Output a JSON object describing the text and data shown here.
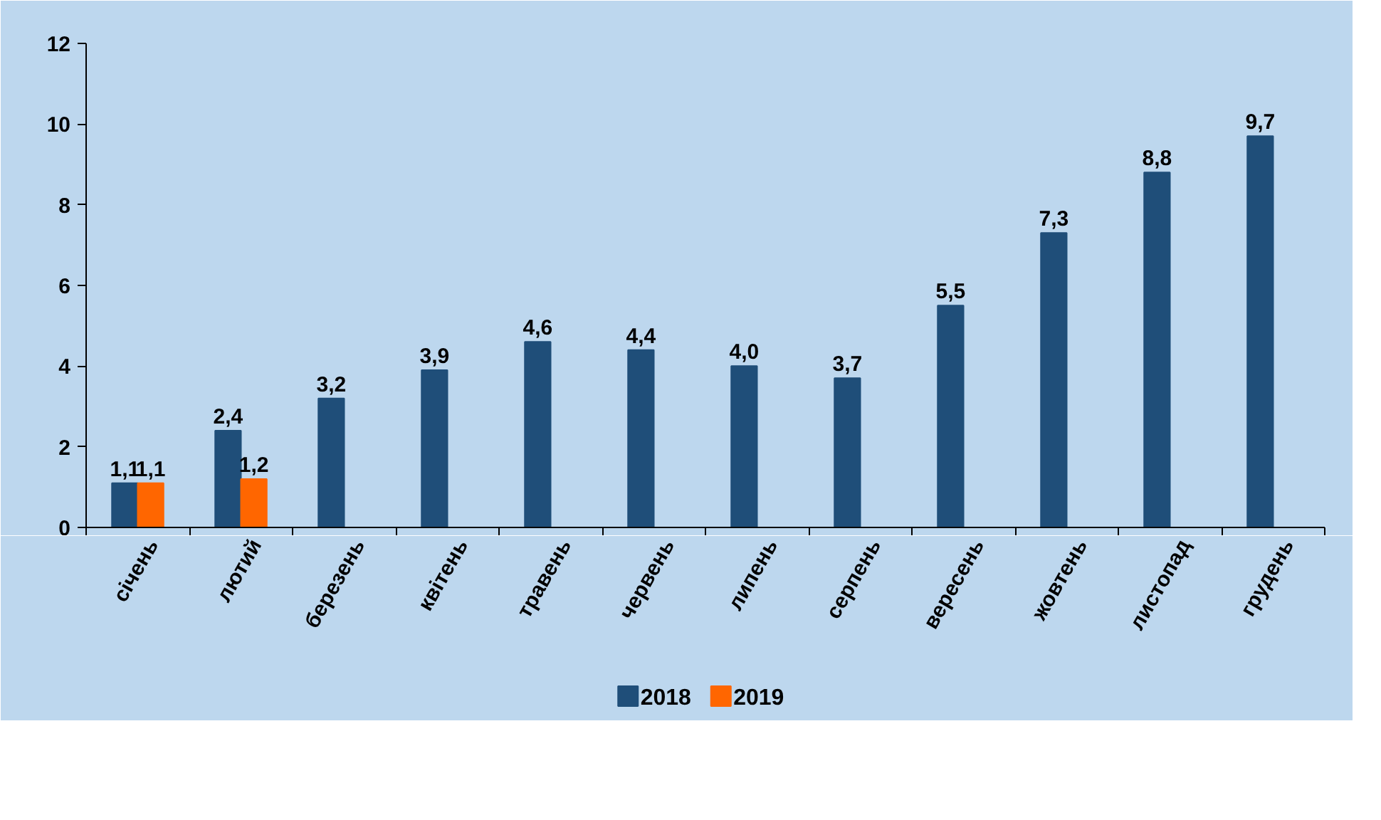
{
  "chart_data": {
    "type": "bar",
    "categories": [
      "січень",
      "лютий",
      "березень",
      "квітень",
      "травень",
      "червень",
      "липень",
      "серпень",
      "вересень",
      "жовтень",
      "листопад",
      "грудень"
    ],
    "series": [
      {
        "name": "2018",
        "color": "#1f4e79",
        "values": [
          1.1,
          2.4,
          3.2,
          3.9,
          4.6,
          4.4,
          4.0,
          3.7,
          5.5,
          7.3,
          8.8,
          9.7
        ],
        "value_labels": [
          "1,1",
          "2,4",
          "3,2",
          "3,9",
          "4,6",
          "4,4",
          "4,0",
          "3,7",
          "5,5",
          "7,3",
          "8,8",
          "9,7"
        ]
      },
      {
        "name": "2019",
        "color": "#ff6600",
        "values": [
          1.1,
          1.2,
          null,
          null,
          null,
          null,
          null,
          null,
          null,
          null,
          null,
          null
        ],
        "value_labels": [
          "1,1",
          "1,2",
          null,
          null,
          null,
          null,
          null,
          null,
          null,
          null,
          null,
          null
        ]
      }
    ],
    "ylim": [
      0,
      12
    ],
    "yticks": [
      0,
      2,
      4,
      6,
      8,
      10,
      12
    ],
    "grid": false,
    "legend": "bottom"
  }
}
